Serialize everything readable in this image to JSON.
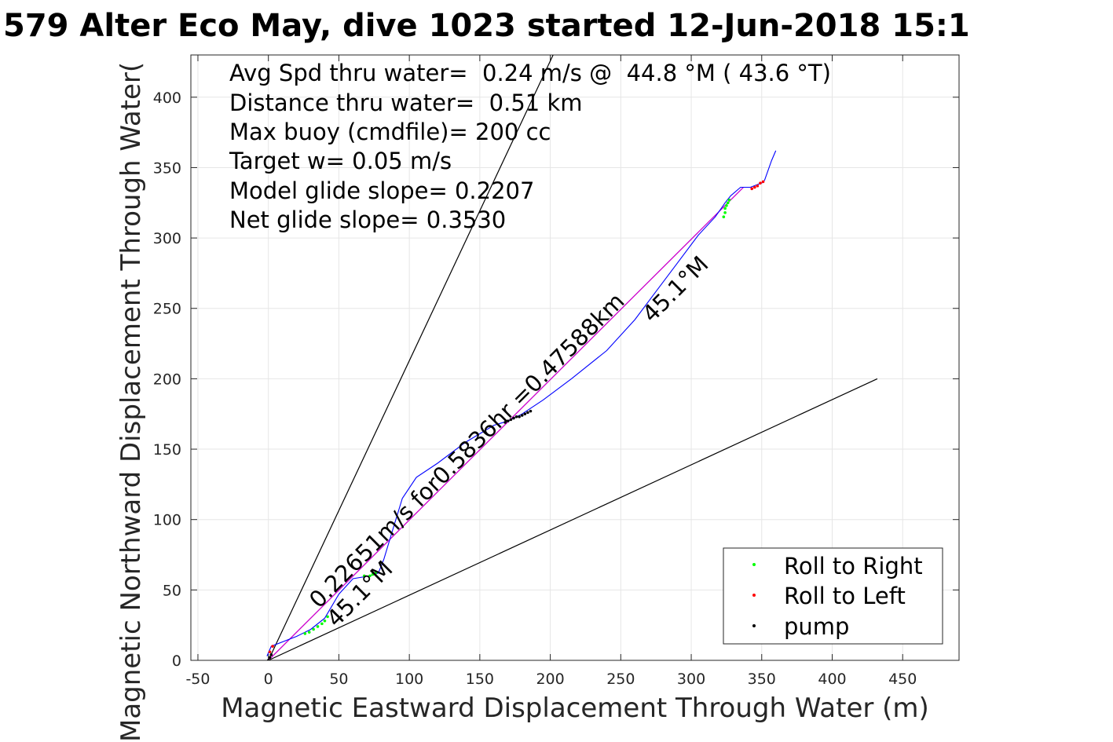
{
  "chart_data": {
    "type": "line",
    "title": "579 Alter Eco May, dive 1023 started 12-Jun-2018 15:1",
    "xlabel": "Magnetic Eastward Displacement Through Water (m)",
    "ylabel": "Magnetic Northward Displacement Through Water(",
    "xlim": [
      -55,
      490
    ],
    "ylim": [
      0,
      430
    ],
    "xticks": [
      -50,
      0,
      50,
      100,
      150,
      200,
      250,
      300,
      350,
      400,
      450
    ],
    "yticks": [
      0,
      50,
      100,
      150,
      200,
      250,
      300,
      350,
      400
    ],
    "grid": true,
    "legend_placement": "bottom-right",
    "annotations": [
      "Avg Spd thru water=  0.24 m/s @  44.8 °M ( 43.6 °T)",
      "Distance thru water=  0.51 km",
      "Max buoy (cmdfile)= 200 cc",
      "Target w= 0.05 m/s",
      "Model glide slope= 0.2207",
      "Net glide slope= 0.3530"
    ],
    "line_labels": {
      "speed": "0.22651m/s for0.5836hr =0.47588km",
      "heading_upper": "45.1°M",
      "heading_lower": "45.1°M"
    },
    "colors": {
      "track": "#0000ff",
      "heading_line": "#cc00cc",
      "glide_lines": "#000000",
      "roll_right": "#00ff00",
      "roll_left": "#ff0000",
      "pump": "#000000"
    },
    "glide_limit_lines": [
      {
        "x": [
          0,
          202
        ],
        "y": [
          0,
          430
        ]
      },
      {
        "x": [
          0,
          432
        ],
        "y": [
          0,
          200
        ]
      }
    ],
    "heading_line": {
      "x": [
        0,
        337
      ],
      "y": [
        0,
        336
      ]
    },
    "track": {
      "x": [
        -1,
        2,
        20,
        30,
        40,
        50,
        60,
        72,
        78,
        82,
        88,
        95,
        105,
        120,
        140,
        160,
        170,
        180,
        195,
        215,
        240,
        260,
        275,
        290,
        305,
        317,
        322,
        324,
        328,
        335,
        342,
        347,
        350,
        352,
        357,
        360
      ],
      "y": [
        3,
        10,
        17,
        22,
        30,
        47,
        58,
        60,
        62,
        72,
        92,
        115,
        130,
        140,
        155,
        167,
        170,
        175,
        185,
        200,
        220,
        242,
        262,
        282,
        302,
        315,
        322,
        325,
        330,
        336,
        336,
        338,
        339,
        341,
        355,
        362
      ]
    },
    "series": [
      {
        "name": "Roll to Right",
        "x": [
          26,
          29,
          32,
          35,
          38,
          40,
          42,
          68,
          72,
          74,
          76,
          323,
          324,
          324,
          325,
          326,
          327
        ],
        "y": [
          19,
          20,
          22,
          24,
          26,
          28,
          31,
          60,
          60,
          61,
          62,
          315,
          318,
          321,
          323,
          325,
          327
        ]
      },
      {
        "name": "Roll to Left",
        "x": [
          1,
          3,
          343,
          345,
          347,
          349,
          351
        ],
        "y": [
          6,
          10,
          335,
          336,
          337,
          339,
          340
        ]
      },
      {
        "name": "pump",
        "x": [
          0,
          1,
          2,
          168,
          170,
          172,
          174,
          176,
          178,
          180,
          182,
          184,
          186
        ],
        "y": [
          0,
          2,
          4,
          169,
          170,
          171,
          172,
          173,
          173,
          174,
          175,
          176,
          177
        ]
      }
    ]
  }
}
